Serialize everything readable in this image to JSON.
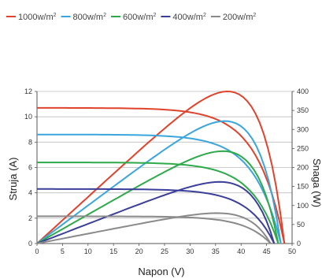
{
  "chart_data": {
    "type": "line",
    "xlabel": "Napon (V)",
    "ylabel": "Struja (A)",
    "y2label": "Snaga (W)",
    "xlim": [
      0,
      50
    ],
    "ylim": [
      0,
      12
    ],
    "y2lim": [
      0,
      400
    ],
    "xticks": [
      0,
      5,
      10,
      15,
      20,
      25,
      30,
      35,
      40,
      45,
      50
    ],
    "yticks": [
      0,
      2,
      4,
      6,
      8,
      10,
      12
    ],
    "y2ticks": [
      0,
      50,
      100,
      150,
      200,
      250,
      300,
      350,
      400
    ],
    "legend_position": "top",
    "grid": "horizontal",
    "series": [
      {
        "name": "1000w/m",
        "color": "#e0432c",
        "isc": 10.7,
        "voc": 48.5,
        "mpp_voltage": 40.5,
        "mpp_current": 9.3,
        "max_power": 400
      },
      {
        "name": "800w/m",
        "color": "#3aa6dd",
        "isc": 8.6,
        "voc": 47.8,
        "mpp_voltage": 40.8,
        "mpp_current": 7.9,
        "max_power": 322
      },
      {
        "name": "600w/m",
        "color": "#2faa4a",
        "isc": 6.4,
        "voc": 47.3,
        "mpp_voltage": 40.5,
        "mpp_current": 6.0,
        "max_power": 243
      },
      {
        "name": "400w/m",
        "color": "#3b3f9a",
        "isc": 4.3,
        "voc": 46.5,
        "mpp_voltage": 40.5,
        "mpp_current": 4.0,
        "max_power": 162
      },
      {
        "name": "200w/m",
        "color": "#8a8a8a",
        "isc": 2.15,
        "voc": 45.8,
        "mpp_voltage": 40.0,
        "mpp_current": 2.0,
        "max_power": 80
      }
    ]
  },
  "legend_unit_superscript": "2"
}
